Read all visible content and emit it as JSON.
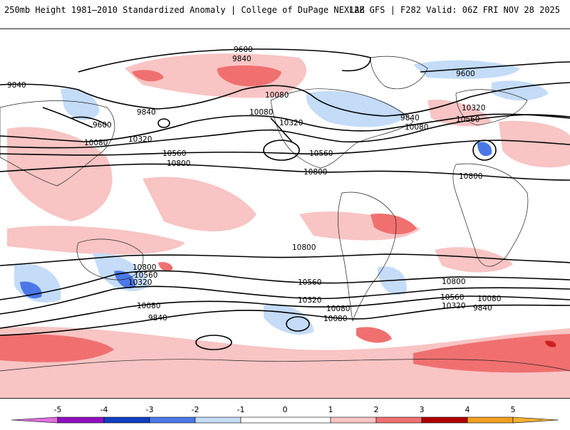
{
  "header": {
    "title_left": "250mb Height 1981–2010 Standardized Anomaly | College of DuPage NEXLAB",
    "title_right": "12Z GFS | F282 Valid: 06Z FRI NOV 28 2025"
  },
  "colors": {
    "neg5": "#e070e0",
    "neg4": "#9010c0",
    "neg3": "#1040c0",
    "neg2": "#4a78e8",
    "neg1": "#c4dcf8",
    "zero": "#ffffff",
    "pos1": "#f8c4c4",
    "pos2": "#f07070",
    "pos3": "#d02020",
    "pos4": "#b00000",
    "pos5": "#f0a020"
  },
  "colorbar": {
    "ticks": [
      "-5",
      "-4",
      "-3",
      "-2",
      "-1",
      "0",
      "1",
      "2",
      "3",
      "4",
      "5"
    ]
  },
  "contours": {
    "c9600a": "9600",
    "c9600b": "9600",
    "c9600c": "9600",
    "c9840a": "9840",
    "c9840b": "9840",
    "c9840c": "9840",
    "c9840d": "9840",
    "c9840e": "9840",
    "c9840f": "9840",
    "c10080a": "10080",
    "c10080b": "10080",
    "c10080c": "10080",
    "c10080d": "10080",
    "c10080e": "10080",
    "c10080f": "10080",
    "c10080g": "10080",
    "c10080h": "10080",
    "c10320a": "10320",
    "c10320b": "10320",
    "c10320c": "10320",
    "c10320d": "10320",
    "c10320e": "10320",
    "c10320f": "10320",
    "c10560a": "10560",
    "c10560b": "10560",
    "c10560c": "10560",
    "c10560d": "10560",
    "c10560e": "10560",
    "c10560f": "10560",
    "c10800a": "10800",
    "c10800b": "10800",
    "c10800c": "10800",
    "c10800d": "10800",
    "c10800e": "10800",
    "c10800f": "10800"
  }
}
